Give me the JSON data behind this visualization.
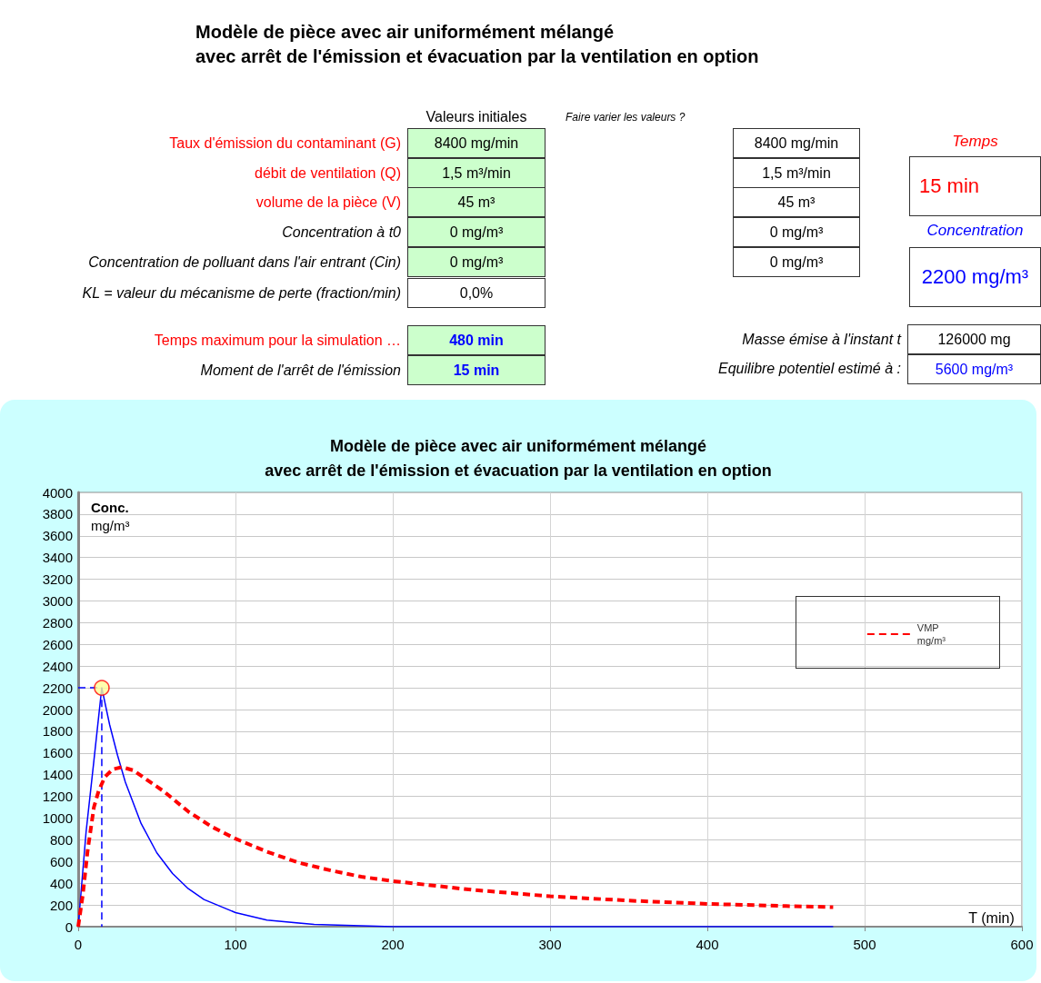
{
  "chart_data": [
    {
      "type": "other",
      "title": "Modèle de pièce avec air uniformément mélangé\navec arrêt de l'émission et évacuation par la ventilation en option",
      "annotations": [
        "Valeurs initiales",
        "Faire varier les valeurs ?",
        "Taux d'émission du contaminant (G)",
        "8400 mg/min",
        "8400 mg/min",
        "débit de ventilation (Q)",
        "1,5 m³/min",
        "1,5 m³/min",
        "volume de la pièce (V)",
        "45 m³",
        "45 m³",
        "Concentration à t0",
        "0 mg/m³",
        "0 mg/m³",
        "Concentration de polluant dans l'air entrant (Cin)",
        "0 mg/m³",
        "0 mg/m³",
        "KL = valeur du mécanisme de perte (fraction/min)",
        "0,0%",
        "Temps",
        "15 min",
        "Concentration",
        "2200 mg/m³",
        "Temps maximum pour la simulation …",
        "480 min",
        "Moment de l'arrêt de l'émission",
        "15 min",
        "Masse émise à l'instant t",
        "126000 mg",
        "Equilibre potentiel estimé à :",
        "5600 mg/m³"
      ]
    },
    {
      "type": "line",
      "title": "Modèle de pièce avec air uniformément mélangé\navec arrêt de l'émission et évacuation par la ventilation en option",
      "xlabel": "T (min)",
      "ylabel": "Conc.\nmg/m³",
      "xlim": [
        0,
        600
      ],
      "xticks": [
        0,
        100,
        200,
        300,
        400,
        500,
        600
      ],
      "ylim": [
        0,
        4000
      ],
      "yticks": [
        0,
        200,
        400,
        600,
        800,
        1000,
        1200,
        1400,
        1600,
        1800,
        2000,
        2200,
        2400,
        2600,
        2800,
        3000,
        3200,
        3400,
        3600,
        3800,
        4000
      ],
      "grid": true,
      "legend": "right",
      "marker": "none",
      "series": [
        {
          "color": "#0000ff",
          "line_style": "solid",
          "x": [
            0,
            5,
            10,
            15,
            20,
            25,
            30,
            40,
            50,
            60,
            70,
            80,
            100,
            120,
            150,
            200,
            250,
            300,
            400,
            480
          ],
          "values": [
            0,
            870,
            1530,
            2200,
            1860,
            1580,
            1330,
            950,
            680,
            490,
            350,
            250,
            130,
            60,
            20,
            0,
            0,
            0,
            0,
            0
          ]
        },
        {
          "color": "#0000ff",
          "line_style": "dashed",
          "x": [
            0,
            15,
            15
          ],
          "values": [
            2200,
            2200,
            0
          ]
        },
        {
          "name": "VMP\nmg/m³",
          "color": "#ff0000",
          "line_style": "dashed",
          "x": [
            0,
            3,
            6,
            10,
            13,
            17,
            22,
            28,
            35,
            45,
            55,
            70,
            85,
            100,
            120,
            140,
            160,
            180,
            200,
            250,
            300,
            350,
            400,
            450,
            480
          ],
          "values": [
            0,
            300,
            700,
            1100,
            1250,
            1380,
            1450,
            1470,
            1440,
            1340,
            1240,
            1060,
            920,
            810,
            690,
            590,
            520,
            460,
            420,
            340,
            280,
            240,
            210,
            190,
            180
          ]
        },
        {
          "type": "scatter",
          "marker": "circle",
          "color": "#ffff99",
          "x": [
            15
          ],
          "values": [
            2200
          ]
        }
      ]
    }
  ]
}
